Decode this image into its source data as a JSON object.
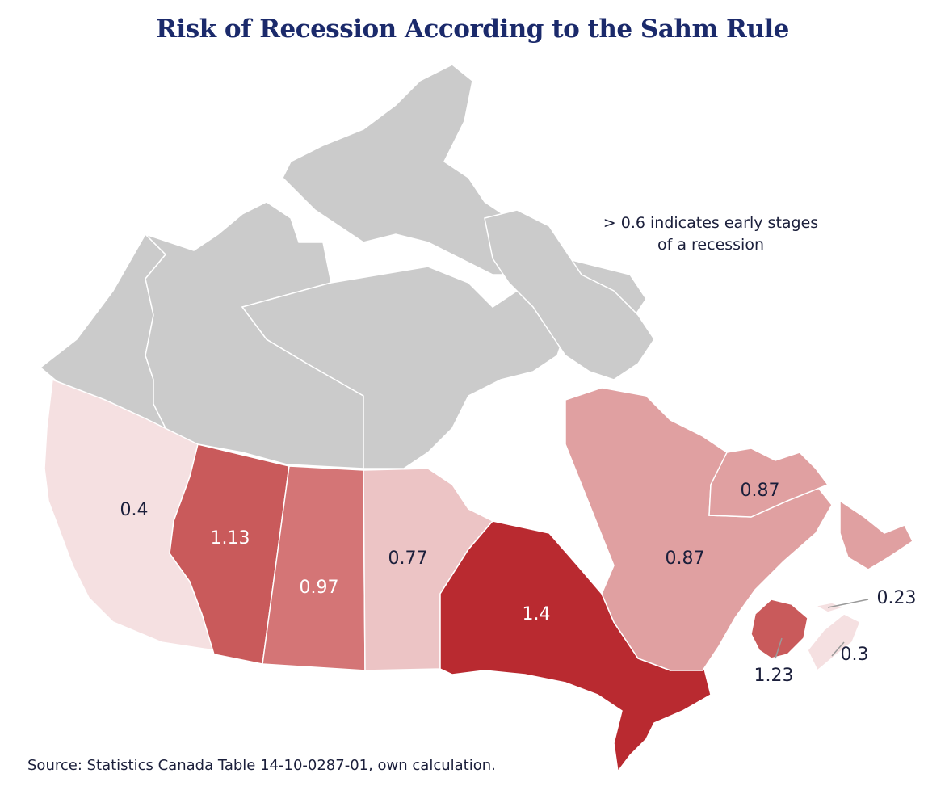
{
  "title": "Risk of Recession According to the Sahm Rule",
  "annotation_line1": "> 0.6 indicates early stages",
  "annotation_line2": "of a recession",
  "source": "Source: Statistics Canada Table 14-10-0287-01, own calculation.",
  "colors": {
    "no_data": "#cbcbcb",
    "scale": [
      "#f5e0e1",
      "#ecc4c5",
      "#e0a0a1",
      "#d47576",
      "#c95a5b",
      "#b92a30"
    ],
    "border": "#ffffff",
    "label_dark": "#1b1f3b",
    "label_light": "#ffffff"
  },
  "regions": [
    {
      "name": "British Columbia",
      "value": "0.4"
    },
    {
      "name": "Alberta",
      "value": "1.13"
    },
    {
      "name": "Saskatchewan",
      "value": "0.97"
    },
    {
      "name": "Manitoba",
      "value": "0.77"
    },
    {
      "name": "Ontario",
      "value": "1.4"
    },
    {
      "name": "Quebec",
      "value": "0.87"
    },
    {
      "name": "Newfoundland and Labrador",
      "value": "0.87"
    },
    {
      "name": "New Brunswick",
      "value": "1.23"
    },
    {
      "name": "Prince Edward Island",
      "value": "0.23"
    },
    {
      "name": "Nova Scotia",
      "value": "0.3"
    }
  ]
}
